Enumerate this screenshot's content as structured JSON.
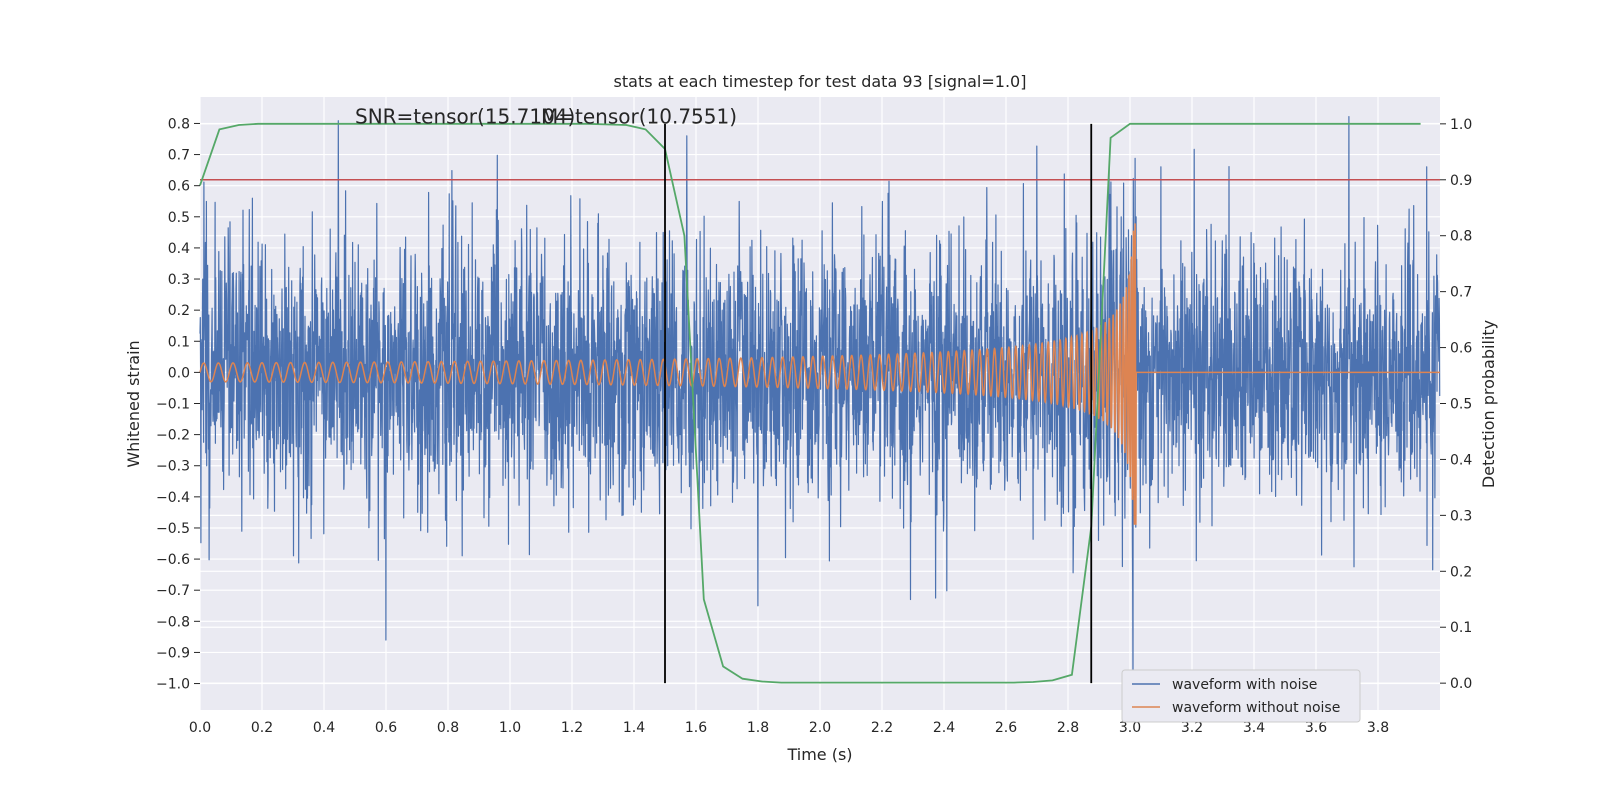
{
  "chart_data": {
    "type": "line",
    "title": "stats at each timestep for test data 93 [signal=1.0]",
    "xlabel": "Time (s)",
    "ylabel": "Whitened strain",
    "y2label": "Detection probability",
    "xlim": [
      0.0,
      4.0
    ],
    "ylim": [
      -1.085,
      0.885
    ],
    "y2lim": [
      -0.048,
      1.048
    ],
    "xticks": [
      "0.0",
      "0.2",
      "0.4",
      "0.6",
      "0.8",
      "1.0",
      "1.2",
      "1.4",
      "1.6",
      "1.8",
      "2.0",
      "2.2",
      "2.4",
      "2.6",
      "2.8",
      "3.0",
      "3.2",
      "3.4",
      "3.6",
      "3.8"
    ],
    "yticks": [
      "0.8",
      "0.7",
      "0.6",
      "0.5",
      "0.4",
      "0.3",
      "0.2",
      "0.1",
      "0.0",
      "−0.1",
      "−0.2",
      "−0.3",
      "−0.4",
      "−0.5",
      "−0.6",
      "−0.7",
      "−0.8",
      "−0.9",
      "−1.0"
    ],
    "y2ticks": [
      "1.0",
      "0.9",
      "0.8",
      "0.7",
      "0.6",
      "0.5",
      "0.4",
      "0.3",
      "0.2",
      "0.1",
      "0.0"
    ],
    "grid": true,
    "legend": "lower-right",
    "annotations": [
      {
        "text": "SNR=tensor(15.7104)",
        "x": 0.5,
        "y": 0.8
      },
      {
        "text": "M=tensor(10.7551)",
        "x": 1.1,
        "y": 0.8
      }
    ],
    "vlines": [
      1.5,
      2.875
    ],
    "hline_y2": 0.9,
    "series": [
      {
        "name": "waveform with noise",
        "color": "#4c72b0",
        "axis": "left",
        "sample_rate": 1024,
        "amplitude_std": 0.2,
        "extremes": [
          {
            "x": 0.6,
            "y": -0.86
          },
          {
            "x": 1.57,
            "y": 0.76
          },
          {
            "x": 1.8,
            "y": -0.75
          },
          {
            "x": 3.01,
            "y": -1.0
          },
          {
            "x": 3.02,
            "y": 0.5
          }
        ]
      },
      {
        "name": "waveform without noise",
        "color": "#dd8452",
        "axis": "left",
        "x_start": 0.0,
        "x_merger": 3.02,
        "amplitude_start": 0.03,
        "amplitude_peak": 0.49
      },
      {
        "name": "",
        "color": "#55a868",
        "axis": "right",
        "x": [
          0.0,
          0.0625,
          0.125,
          0.1875,
          0.25,
          0.5,
          0.75,
          1.0,
          1.25,
          1.375,
          1.4375,
          1.5,
          1.5625,
          1.625,
          1.6875,
          1.75,
          1.8125,
          1.875,
          2.0,
          2.25,
          2.5,
          2.625,
          2.6875,
          2.75,
          2.8125,
          2.875,
          2.9375,
          3.0,
          3.25,
          3.5,
          3.75,
          3.9375
        ],
        "values": [
          0.89,
          0.99,
          0.998,
          1.0,
          1.0,
          1.0,
          1.0,
          1.0,
          1.0,
          0.998,
          0.99,
          0.955,
          0.8,
          0.15,
          0.03,
          0.008,
          0.003,
          0.001,
          0.001,
          0.001,
          0.001,
          0.001,
          0.002,
          0.005,
          0.015,
          0.28,
          0.975,
          1.0,
          1.0,
          1.0,
          1.0,
          1.0
        ]
      },
      {
        "name": "",
        "color": "#c44e52",
        "axis": "right",
        "x": [
          0.0,
          4.0
        ],
        "values": [
          0.9,
          0.9
        ]
      }
    ]
  }
}
